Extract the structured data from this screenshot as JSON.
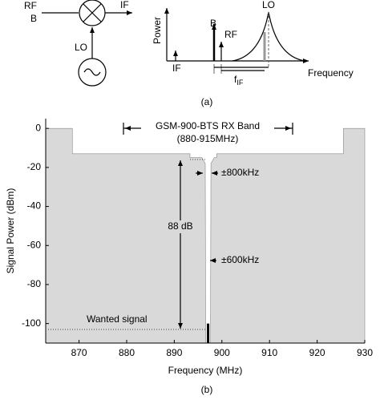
{
  "diagram": {
    "rf": "RF",
    "b": "B",
    "if": "IF",
    "lo": "LO",
    "power": "Power",
    "spectrum_b": "B",
    "spectrum_rf": "RF",
    "spectrum_lo": "LO",
    "spectrum_if": "IF",
    "f_if": {
      "f": "f",
      "sub": "IF"
    },
    "frequency": "Frequency",
    "caption": "(a)"
  },
  "chart_data": {
    "type": "area",
    "x": [
      863,
      868.6,
      868.6,
      893.3,
      893.3,
      895.8,
      896.5,
      896.6,
      897.6,
      897.7,
      898.4,
      898.9,
      898.9,
      925.5,
      925.5,
      930
    ],
    "values": [
      0,
      0,
      -13,
      -13,
      -15,
      -15,
      -18,
      -110,
      -110,
      -18,
      -15,
      -15,
      -13,
      -13,
      0,
      0
    ],
    "color": "#d9d9d9",
    "xlim": [
      863,
      930
    ],
    "ylim": [
      -110,
      5
    ],
    "xticks": [
      870,
      880,
      890,
      900,
      910,
      920,
      930
    ],
    "yticks": [
      0,
      -20,
      -40,
      -60,
      -80,
      -100
    ],
    "xlabel": "Frequency (MHz)",
    "ylabel": "Signal Power (dBm)",
    "annotations": {
      "band": "GSM-900-BTS RX Band",
      "band_range": "(880-915MHz)",
      "offset_800": "±800kHz",
      "offset_600": "±600kHz",
      "level": "88 dB",
      "wanted": "Wanted signal"
    },
    "wanted_signal": {
      "x": 897.1,
      "value": -100
    },
    "caption": "(b)"
  }
}
